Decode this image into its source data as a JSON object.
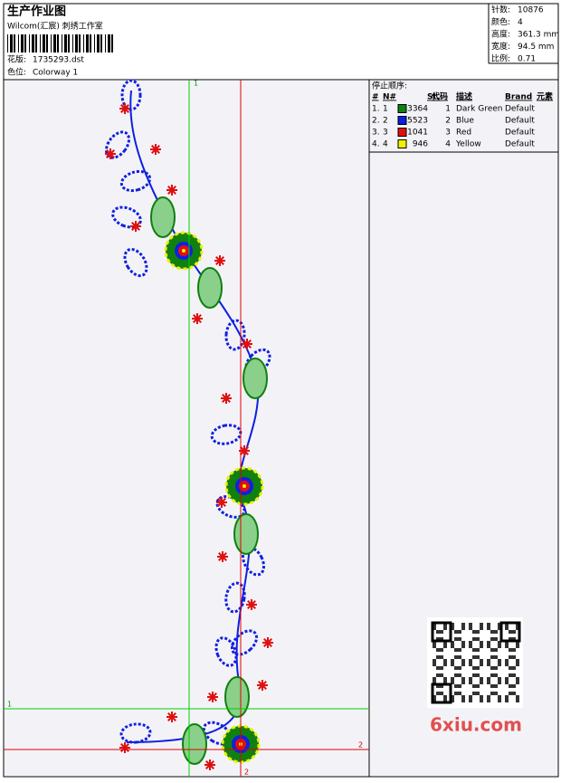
{
  "header": {
    "title": "生产作业图",
    "studio": "Wilcom(汇宸) 刺绣工作室",
    "design_label": "花版:",
    "design": "1735293.dst",
    "colorway_label": "色位:",
    "colorway": "Colorway 1"
  },
  "info": [
    {
      "label": "针数:",
      "value": "10876"
    },
    {
      "label": "颜色:",
      "value": "4"
    },
    {
      "label": "高度:",
      "value": "361.3 mm"
    },
    {
      "label": "宽度:",
      "value": "94.5 mm"
    },
    {
      "label": "比例:",
      "value": "0.71"
    }
  ],
  "stop_sequence": {
    "title": "停止顺序:",
    "columns": [
      "#",
      "N#",
      "St.",
      "代码",
      "描述",
      "Brand",
      "元素"
    ],
    "rows": [
      {
        "index": "1.",
        "n": "1",
        "color": "#108010",
        "stitches": "3364",
        "code": "1",
        "description": "Dark Green",
        "brand": "Default"
      },
      {
        "index": "2.",
        "n": "2",
        "color": "#0a1ee0",
        "stitches": "5523",
        "code": "2",
        "description": "Blue",
        "brand": "Default"
      },
      {
        "index": "3.",
        "n": "3",
        "color": "#e01010",
        "stitches": "1041",
        "code": "3",
        "description": "Red",
        "brand": "Default"
      },
      {
        "index": "4.",
        "n": "4",
        "color": "#f0f000",
        "stitches": "946",
        "code": "4",
        "description": "Yellow",
        "brand": "Default"
      }
    ]
  },
  "guides": {
    "green_top": "1",
    "green_left": "1",
    "red_right": "2",
    "red_bottom": "2"
  },
  "watermark": "6xiu.com"
}
